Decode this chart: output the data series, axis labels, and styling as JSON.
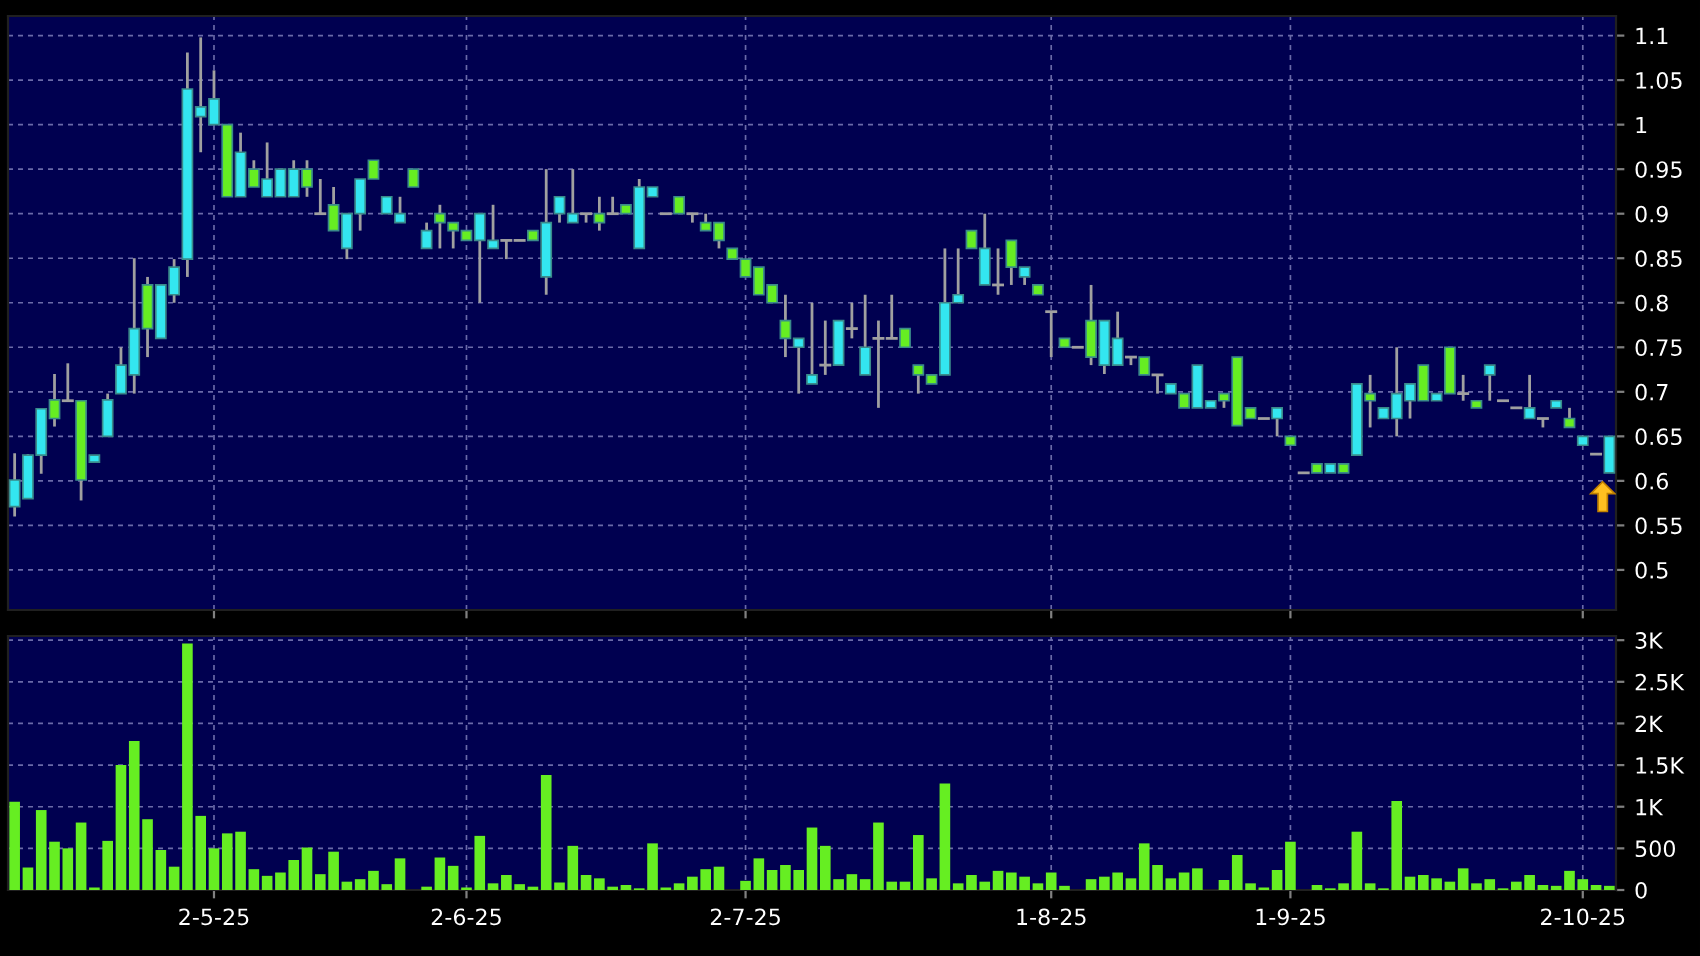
{
  "chart_data": [
    {
      "type": "candlestick",
      "categories": [
        null,
        null,
        null,
        null,
        null,
        null,
        null,
        null,
        null,
        null,
        null,
        null,
        null,
        null,
        null,
        null,
        null,
        null,
        null,
        null,
        null,
        null,
        null,
        null,
        null,
        null,
        null,
        null,
        null,
        null,
        null,
        null,
        null,
        null,
        null,
        null,
        null,
        null,
        null,
        null,
        null,
        null,
        null,
        null,
        null,
        null,
        null,
        null,
        null,
        null,
        null,
        null,
        null,
        null,
        null,
        null,
        null,
        null,
        null,
        null,
        null,
        null,
        null,
        null,
        null,
        null,
        null,
        null,
        null,
        null,
        null,
        null,
        null,
        null,
        null,
        null,
        null,
        null,
        null,
        null,
        null,
        null,
        null,
        null,
        null,
        null,
        null,
        null,
        null,
        null,
        null,
        null,
        null,
        null,
        null,
        null,
        null,
        null,
        null,
        null,
        null,
        null,
        null,
        null,
        null,
        null,
        null,
        null,
        null,
        null,
        null,
        null,
        null,
        null,
        null,
        null,
        null,
        null,
        null,
        null,
        null
      ],
      "ohlc": [
        [
          0.571,
          0.631,
          0.56,
          0.601
        ],
        [
          0.58,
          0.63,
          0.58,
          0.629
        ],
        [
          0.629,
          0.681,
          0.608,
          0.681
        ],
        [
          0.691,
          0.72,
          0.661,
          0.67
        ],
        [
          0.69,
          0.732,
          0.69,
          0.69
        ],
        [
          0.69,
          0.69,
          0.578,
          0.601
        ],
        [
          0.621,
          0.629,
          0.621,
          0.629
        ],
        [
          0.65,
          0.698,
          0.65,
          0.691
        ],
        [
          0.698,
          0.75,
          0.698,
          0.73
        ],
        [
          0.719,
          0.85,
          0.698,
          0.771
        ],
        [
          0.82,
          0.829,
          0.739,
          0.771
        ],
        [
          0.76,
          0.82,
          0.76,
          0.82
        ],
        [
          0.809,
          0.849,
          0.8,
          0.84
        ],
        [
          0.849,
          1.081,
          0.829,
          1.04
        ],
        [
          1.009,
          1.098,
          0.969,
          1.02
        ],
        [
          1.0,
          1.061,
          1.0,
          1.029
        ],
        [
          1.0,
          1.0,
          0.919,
          0.919
        ],
        [
          0.919,
          0.991,
          0.919,
          0.969
        ],
        [
          0.95,
          0.96,
          0.93,
          0.93
        ],
        [
          0.919,
          0.98,
          0.919,
          0.939
        ],
        [
          0.919,
          0.95,
          0.919,
          0.95
        ],
        [
          0.919,
          0.96,
          0.919,
          0.95
        ],
        [
          0.95,
          0.96,
          0.919,
          0.93
        ],
        [
          0.9,
          0.939,
          0.9,
          0.9
        ],
        [
          0.91,
          0.93,
          0.881,
          0.881
        ],
        [
          0.861,
          0.9,
          0.849,
          0.9
        ],
        [
          0.9,
          0.939,
          0.881,
          0.939
        ],
        [
          0.96,
          0.96,
          0.939,
          0.939
        ],
        [
          0.9,
          0.919,
          0.9,
          0.919
        ],
        [
          0.89,
          0.919,
          0.89,
          0.9
        ],
        [
          0.95,
          0.95,
          0.93,
          0.93
        ],
        [
          0.861,
          0.89,
          0.861,
          0.881
        ],
        [
          0.9,
          0.91,
          0.861,
          0.89
        ],
        [
          0.89,
          0.89,
          0.861,
          0.881
        ],
        [
          0.881,
          0.881,
          0.87,
          0.87
        ],
        [
          0.87,
          0.9,
          0.8,
          0.9
        ],
        [
          0.861,
          0.91,
          0.861,
          0.87
        ],
        [
          0.87,
          0.87,
          0.849,
          0.87
        ],
        [
          0.87,
          0.87,
          0.87,
          0.87
        ],
        [
          0.881,
          0.881,
          0.87,
          0.87
        ],
        [
          0.829,
          0.95,
          0.809,
          0.89
        ],
        [
          0.9,
          0.919,
          0.89,
          0.919
        ],
        [
          0.89,
          0.95,
          0.89,
          0.9
        ],
        [
          0.9,
          0.9,
          0.89,
          0.9
        ],
        [
          0.9,
          0.919,
          0.881,
          0.89
        ],
        [
          0.9,
          0.919,
          0.9,
          0.9
        ],
        [
          0.91,
          0.91,
          0.9,
          0.9
        ],
        [
          0.861,
          0.939,
          0.861,
          0.93
        ],
        [
          0.919,
          0.93,
          0.919,
          0.93
        ],
        [
          0.9,
          0.9,
          0.9,
          0.9
        ],
        [
          0.919,
          0.919,
          0.9,
          0.9
        ],
        [
          0.9,
          0.9,
          0.89,
          0.9
        ],
        [
          0.89,
          0.9,
          0.881,
          0.881
        ],
        [
          0.89,
          0.89,
          0.861,
          0.87
        ],
        [
          0.861,
          0.861,
          0.849,
          0.849
        ],
        [
          0.849,
          0.849,
          0.829,
          0.829
        ],
        [
          0.84,
          0.84,
          0.809,
          0.809
        ],
        [
          0.82,
          0.82,
          0.8,
          0.8
        ],
        [
          0.78,
          0.809,
          0.739,
          0.76
        ],
        [
          0.75,
          0.76,
          0.698,
          0.76
        ],
        [
          0.709,
          0.8,
          0.709,
          0.719
        ],
        [
          0.73,
          0.78,
          0.719,
          0.73
        ],
        [
          0.73,
          0.78,
          0.73,
          0.78
        ],
        [
          0.771,
          0.8,
          0.76,
          0.771
        ],
        [
          0.719,
          0.809,
          0.719,
          0.75
        ],
        [
          0.76,
          0.78,
          0.682,
          0.76
        ],
        [
          0.76,
          0.809,
          0.76,
          0.76
        ],
        [
          0.771,
          0.771,
          0.75,
          0.75
        ],
        [
          0.73,
          0.73,
          0.698,
          0.719
        ],
        [
          0.719,
          0.719,
          0.709,
          0.709
        ],
        [
          0.719,
          0.861,
          0.719,
          0.8
        ],
        [
          0.8,
          0.861,
          0.8,
          0.809
        ],
        [
          0.881,
          0.881,
          0.861,
          0.861
        ],
        [
          0.82,
          0.9,
          0.82,
          0.861
        ],
        [
          0.82,
          0.861,
          0.809,
          0.82
        ],
        [
          0.87,
          0.87,
          0.82,
          0.84
        ],
        [
          0.829,
          0.84,
          0.82,
          0.84
        ],
        [
          0.82,
          0.82,
          0.809,
          0.809
        ],
        [
          0.79,
          0.79,
          0.739,
          0.79
        ],
        [
          0.76,
          0.76,
          0.75,
          0.75
        ],
        [
          0.75,
          0.75,
          0.75,
          0.75
        ],
        [
          0.78,
          0.82,
          0.73,
          0.739
        ],
        [
          0.73,
          0.78,
          0.72,
          0.78
        ],
        [
          0.73,
          0.79,
          0.73,
          0.76
        ],
        [
          0.739,
          0.739,
          0.73,
          0.739
        ],
        [
          0.739,
          0.739,
          0.719,
          0.719
        ],
        [
          0.719,
          0.719,
          0.698,
          0.719
        ],
        [
          0.698,
          0.709,
          0.698,
          0.709
        ],
        [
          0.698,
          0.698,
          0.682,
          0.682
        ],
        [
          0.682,
          0.73,
          0.682,
          0.73
        ],
        [
          0.682,
          0.69,
          0.682,
          0.69
        ],
        [
          0.698,
          0.698,
          0.682,
          0.69
        ],
        [
          0.739,
          0.739,
          0.662,
          0.662
        ],
        [
          0.682,
          0.682,
          0.67,
          0.67
        ],
        [
          0.67,
          0.67,
          0.67,
          0.67
        ],
        [
          0.67,
          0.682,
          0.65,
          0.682
        ],
        [
          0.65,
          0.65,
          0.64,
          0.64
        ],
        [
          0.609,
          0.609,
          0.609,
          0.609
        ],
        [
          0.619,
          0.619,
          0.609,
          0.609
        ],
        [
          0.609,
          0.619,
          0.609,
          0.619
        ],
        [
          0.619,
          0.619,
          0.609,
          0.609
        ],
        [
          0.629,
          0.709,
          0.629,
          0.709
        ],
        [
          0.698,
          0.719,
          0.66,
          0.69
        ],
        [
          0.67,
          0.682,
          0.67,
          0.682
        ],
        [
          0.67,
          0.75,
          0.65,
          0.698
        ],
        [
          0.69,
          0.709,
          0.67,
          0.709
        ],
        [
          0.73,
          0.73,
          0.69,
          0.69
        ],
        [
          0.69,
          0.698,
          0.69,
          0.698
        ],
        [
          0.75,
          0.75,
          0.698,
          0.698
        ],
        [
          0.698,
          0.719,
          0.69,
          0.698
        ],
        [
          0.69,
          0.69,
          0.682,
          0.682
        ],
        [
          0.719,
          0.73,
          0.69,
          0.73
        ],
        [
          0.69,
          0.69,
          0.69,
          0.69
        ],
        [
          0.682,
          0.682,
          0.682,
          0.682
        ],
        [
          0.67,
          0.719,
          0.67,
          0.682
        ],
        [
          0.67,
          0.67,
          0.66,
          0.67
        ],
        [
          0.682,
          0.69,
          0.682,
          0.69
        ],
        [
          0.67,
          0.682,
          0.66,
          0.66
        ],
        [
          0.64,
          0.65,
          0.64,
          0.65
        ],
        [
          0.63,
          0.63,
          0.63,
          0.63
        ],
        [
          0.609,
          0.65,
          0.609,
          0.65
        ]
      ],
      "colors": [
        "#33e6f0",
        "#33e6f0",
        "#33e6f0",
        "#66ee22",
        "#a0a0a0",
        "#66ee22",
        "#33e6f0",
        "#33e6f0",
        "#33e6f0",
        "#33e6f0",
        "#66ee22",
        "#33e6f0",
        "#33e6f0",
        "#33e6f0",
        "#33e6f0",
        "#33e6f0",
        "#66ee22",
        "#33e6f0",
        "#66ee22",
        "#33e6f0",
        "#33e6f0",
        "#33e6f0",
        "#66ee22",
        "#a0a0a0",
        "#66ee22",
        "#33e6f0",
        "#33e6f0",
        "#66ee22",
        "#33e6f0",
        "#33e6f0",
        "#66ee22",
        "#33e6f0",
        "#66ee22",
        "#66ee22",
        "#66ee22",
        "#33e6f0",
        "#33e6f0",
        "#a0a0a0",
        "#a0a0a0",
        "#66ee22",
        "#33e6f0",
        "#33e6f0",
        "#33e6f0",
        "#a0a0a0",
        "#66ee22",
        "#a0a0a0",
        "#66ee22",
        "#33e6f0",
        "#33e6f0",
        "#a0a0a0",
        "#66ee22",
        "#a0a0a0",
        "#66ee22",
        "#66ee22",
        "#66ee22",
        "#66ee22",
        "#66ee22",
        "#66ee22",
        "#66ee22",
        "#33e6f0",
        "#33e6f0",
        "#a0a0a0",
        "#33e6f0",
        "#a0a0a0",
        "#33e6f0",
        "#a0a0a0",
        "#a0a0a0",
        "#66ee22",
        "#66ee22",
        "#66ee22",
        "#33e6f0",
        "#33e6f0",
        "#66ee22",
        "#33e6f0",
        "#a0a0a0",
        "#66ee22",
        "#33e6f0",
        "#66ee22",
        "#a0a0a0",
        "#66ee22",
        "#a0a0a0",
        "#66ee22",
        "#33e6f0",
        "#33e6f0",
        "#a0a0a0",
        "#66ee22",
        "#a0a0a0",
        "#33e6f0",
        "#66ee22",
        "#33e6f0",
        "#33e6f0",
        "#66ee22",
        "#66ee22",
        "#66ee22",
        "#a0a0a0",
        "#33e6f0",
        "#66ee22",
        "#a0a0a0",
        "#66ee22",
        "#33e6f0",
        "#66ee22",
        "#33e6f0",
        "#66ee22",
        "#33e6f0",
        "#33e6f0",
        "#33e6f0",
        "#66ee22",
        "#33e6f0",
        "#66ee22",
        "#a0a0a0",
        "#66ee22",
        "#33e6f0",
        "#a0a0a0",
        "#a0a0a0",
        "#33e6f0",
        "#a0a0a0",
        "#33e6f0",
        "#66ee22",
        "#33e6f0",
        "#a0a0a0",
        "#33e6f0"
      ],
      "ylim": [
        0.455,
        1.122
      ],
      "yticks": [
        0.5,
        0.55,
        0.6,
        0.65,
        0.7,
        0.75,
        0.8,
        0.85,
        0.9,
        0.95,
        1,
        1.05,
        1.1
      ],
      "grid": true,
      "tick_labels": "y"
    },
    {
      "type": "bar",
      "categories": [
        null,
        null,
        null,
        null,
        null,
        null,
        null,
        null,
        null,
        null,
        null,
        null,
        null,
        null,
        null,
        "2-5-25",
        null,
        null,
        null,
        null,
        null,
        null,
        null,
        null,
        null,
        null,
        null,
        null,
        null,
        null,
        null,
        null,
        null,
        null,
        "2-6-25",
        null,
        null,
        null,
        null,
        null,
        null,
        null,
        null,
        null,
        null,
        null,
        null,
        null,
        null,
        null,
        null,
        null,
        null,
        null,
        null,
        "2-7-25",
        null,
        null,
        null,
        null,
        null,
        null,
        null,
        null,
        null,
        null,
        null,
        null,
        null,
        null,
        null,
        null,
        null,
        null,
        null,
        null,
        null,
        null,
        "1-8-25",
        null,
        null,
        null,
        null,
        null,
        null,
        null,
        null,
        null,
        null,
        null,
        null,
        null,
        null,
        null,
        null,
        null,
        "1-9-25",
        null,
        null,
        null,
        null,
        null,
        null,
        null,
        null,
        null,
        null,
        null,
        null,
        null,
        null,
        null,
        null,
        null,
        null,
        null,
        null,
        null,
        "2-10-25",
        null,
        null
      ],
      "values": [
        1060,
        270,
        960,
        580,
        500,
        810,
        30,
        590,
        1500,
        1790,
        850,
        480,
        280,
        2960,
        890,
        500,
        680,
        700,
        250,
        170,
        210,
        360,
        510,
        190,
        460,
        100,
        130,
        230,
        70,
        380,
        0,
        40,
        390,
        290,
        30,
        650,
        80,
        180,
        70,
        40,
        1380,
        90,
        530,
        180,
        140,
        40,
        60,
        20,
        560,
        30,
        80,
        160,
        250,
        280,
        0,
        110,
        380,
        240,
        300,
        240,
        750,
        530,
        130,
        190,
        130,
        810,
        100,
        100,
        660,
        140,
        1280,
        80,
        180,
        100,
        230,
        210,
        160,
        80,
        210,
        50,
        0,
        130,
        160,
        210,
        140,
        560,
        300,
        140,
        210,
        260,
        0,
        120,
        420,
        80,
        30,
        240,
        580,
        0,
        60,
        20,
        80,
        700,
        80,
        20,
        1070,
        160,
        180,
        140,
        100,
        260,
        80,
        130,
        20,
        100,
        180,
        60,
        50,
        230,
        130,
        60,
        50
      ],
      "color": "#66ee22",
      "ylim": [
        0,
        3050
      ],
      "yticks": [
        0,
        500,
        {
          "value": 1000,
          "label": "1K"
        },
        {
          "value": 1500,
          "label": "1.5K"
        },
        {
          "value": 2000,
          "label": "2K"
        },
        {
          "value": 2500,
          "label": "2.5K"
        },
        {
          "value": 3000,
          "label": "3K"
        }
      ],
      "grid": true
    }
  ]
}
